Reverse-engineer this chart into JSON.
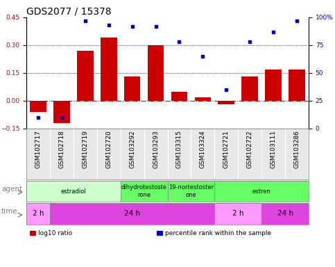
{
  "title": "GDS2077 / 15378",
  "samples": [
    "GSM102717",
    "GSM102718",
    "GSM102719",
    "GSM102720",
    "GSM103292",
    "GSM103293",
    "GSM103315",
    "GSM103324",
    "GSM102721",
    "GSM102722",
    "GSM103111",
    "GSM103286"
  ],
  "log10_ratio": [
    -0.06,
    -0.12,
    0.27,
    0.34,
    0.13,
    0.3,
    0.05,
    0.02,
    -0.02,
    0.13,
    0.17,
    0.17
  ],
  "percentile_rank": [
    10,
    10,
    97,
    93,
    92,
    92,
    78,
    65,
    35,
    78,
    87,
    97
  ],
  "bar_color": "#cc0000",
  "dot_color": "#0000cc",
  "ylim_left": [
    -0.15,
    0.45
  ],
  "ylim_right": [
    0,
    100
  ],
  "yticks_left": [
    -0.15,
    0,
    0.15,
    0.3,
    0.45
  ],
  "yticks_right": [
    0,
    25,
    50,
    75,
    100
  ],
  "zero_line_color": "#cc0000",
  "dotted_line_color": "#000000",
  "agent_labels": [
    {
      "label": "estradiol",
      "start": 0,
      "end": 4,
      "color": "#ccffcc"
    },
    {
      "label": "dihydrotestoste\nrone",
      "start": 4,
      "end": 6,
      "color": "#66ff66"
    },
    {
      "label": "19-nortestoster\none",
      "start": 6,
      "end": 8,
      "color": "#66ff66"
    },
    {
      "label": "estren",
      "start": 8,
      "end": 12,
      "color": "#66ff66"
    }
  ],
  "time_labels": [
    {
      "label": "2 h",
      "start": 0,
      "end": 1,
      "color": "#ff99ff"
    },
    {
      "label": "24 h",
      "start": 1,
      "end": 8,
      "color": "#dd44dd"
    },
    {
      "label": "2 h",
      "start": 8,
      "end": 10,
      "color": "#ff99ff"
    },
    {
      "label": "24 h",
      "start": 10,
      "end": 12,
      "color": "#dd44dd"
    }
  ],
  "legend_items": [
    {
      "color": "#cc0000",
      "label": "log10 ratio"
    },
    {
      "color": "#0000cc",
      "label": "percentile rank within the sample"
    }
  ],
  "tick_label_fontsize": 6.5,
  "title_fontsize": 10,
  "label_fontsize": 7.5,
  "row_label_fontsize": 7.5
}
